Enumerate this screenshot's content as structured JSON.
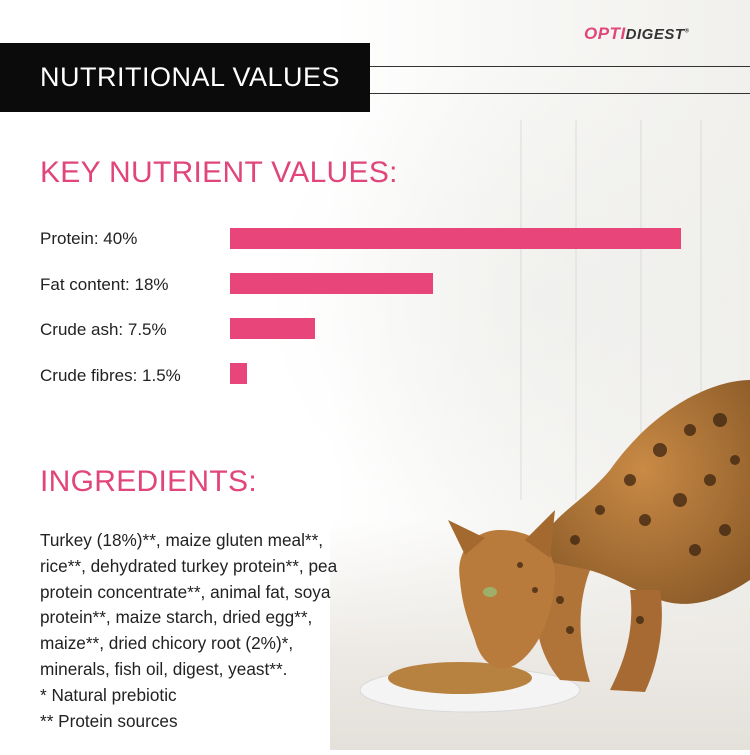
{
  "brand": {
    "logo_part1": "OPTI",
    "logo_part2": "DIGEST",
    "logo_mark": "®"
  },
  "header": {
    "title": "NUTRITIONAL VALUES"
  },
  "nutrients": {
    "heading": "KEY NUTRIENT VALUES:",
    "items": [
      {
        "label": "Protein: 40%",
        "value_percent": 40
      },
      {
        "label": "Fat content: 18%",
        "value_percent": 18
      },
      {
        "label": "Crude ash: 7.5%",
        "value_percent": 7.5
      },
      {
        "label": "Crude fibres: 1.5%",
        "value_percent": 1.5
      }
    ],
    "bar_color": "#e8457b"
  },
  "ingredients": {
    "heading": "INGREDIENTS:",
    "lines": [
      "Turkey (18%)**, maize gluten meal**,",
      "rice**, dehydrated turkey protein**, pea",
      "protein concentrate**, animal fat, soya",
      "protein**, maize starch, dried egg**,",
      "maize**, dried chicory root (2%)*,",
      "minerals, fish oil, digest, yeast**.",
      "* Natural prebiotic",
      "** Protein sources"
    ]
  },
  "colors": {
    "accent": "#e0457b",
    "header_bg": "#0b0b0b"
  },
  "images": {
    "cat": "cat-eating-from-plate"
  }
}
